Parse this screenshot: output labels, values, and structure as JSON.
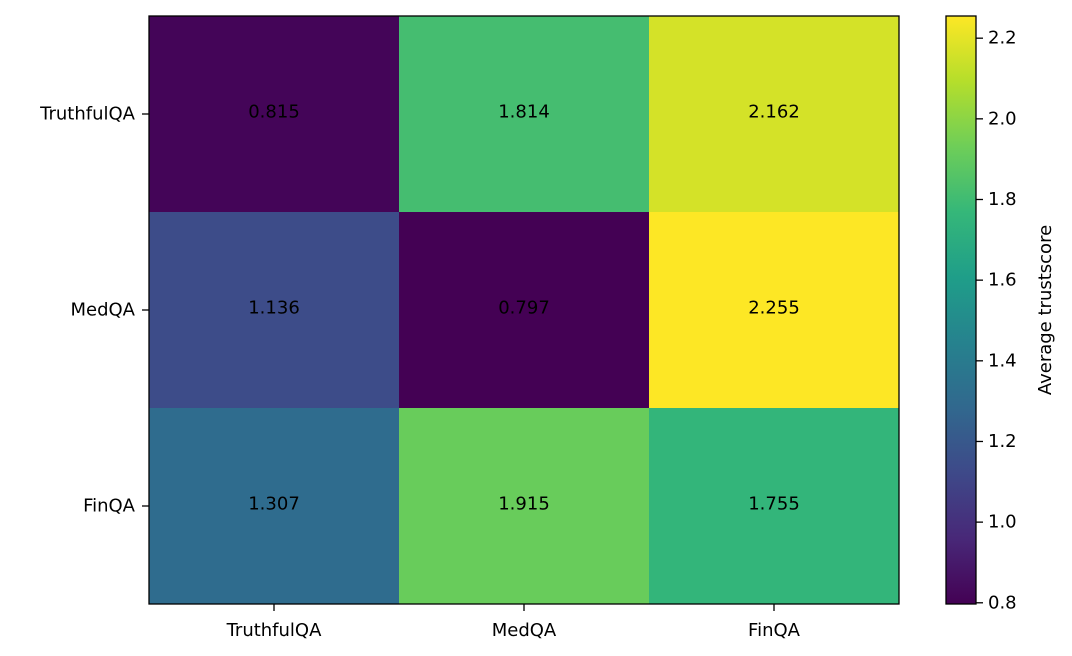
{
  "chart_data": {
    "type": "heatmap",
    "rows": [
      "TruthfulQA",
      "MedQA",
      "FinQA"
    ],
    "columns": [
      "TruthfulQA",
      "MedQA",
      "FinQA"
    ],
    "values": [
      [
        0.815,
        1.814,
        2.162
      ],
      [
        1.136,
        0.797,
        2.255
      ],
      [
        1.307,
        1.915,
        1.755
      ]
    ],
    "value_labels": [
      [
        "0.815",
        "1.814",
        "2.162"
      ],
      [
        "1.136",
        "0.797",
        "2.255"
      ],
      [
        "1.307",
        "1.915",
        "1.755"
      ]
    ],
    "colormap": "viridis",
    "vmin": 0.797,
    "vmax": 2.255,
    "colorbar": {
      "label": "Average trustscore",
      "ticks": [
        0.8,
        1.0,
        1.2,
        1.4,
        1.6,
        1.8,
        2.0,
        2.2
      ],
      "tick_labels": [
        "0.8",
        "1.0",
        "1.2",
        "1.4",
        "1.6",
        "1.8",
        "2.0",
        "2.2"
      ],
      "position": "right"
    },
    "grid": false
  }
}
